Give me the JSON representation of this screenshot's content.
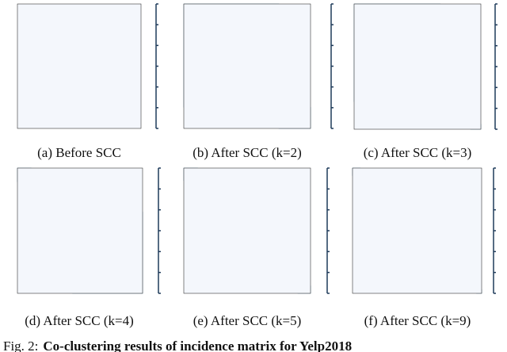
{
  "panels": [
    {
      "caption": "(a) Before SCC"
    },
    {
      "caption": "(b) After SCC (k=2)"
    },
    {
      "caption": "(c) After SCC (k=3)"
    },
    {
      "caption": "(d) After SCC (k=4)"
    },
    {
      "caption": "(e) After SCC (k=5)"
    },
    {
      "caption": "(f) After SCC (k=9)"
    }
  ],
  "figure_caption": {
    "label": "Fig. 2:",
    "text": "Co-clustering results of incidence matrix for Yelp2018"
  }
}
